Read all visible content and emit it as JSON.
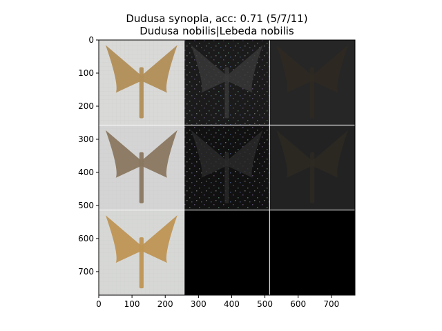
{
  "figure": {
    "title_line1": "Dudusa synopla, acc: 0.71 (5/7/11)",
    "title_line2": "Dudusa nobilis|Lebeda nobilis"
  },
  "axes": {
    "xlim": [
      0,
      771
    ],
    "ylim": [
      771,
      0
    ],
    "x_ticks": [
      0,
      100,
      200,
      300,
      400,
      500,
      600,
      700
    ],
    "y_ticks": [
      0,
      100,
      200,
      300,
      400,
      500,
      600,
      700
    ]
  },
  "grid_panels": [
    {
      "row": 0,
      "col": 0,
      "content": "moth-photo",
      "bg": "#d9d9d7",
      "wing": "#b28e57"
    },
    {
      "row": 0,
      "col": 1,
      "content": "saliency-noise",
      "bg": "#1b1b1b",
      "wing": "#3a3a3a"
    },
    {
      "row": 0,
      "col": 2,
      "content": "dark-moth",
      "bg": "#262626",
      "wing": "#2f2a22"
    },
    {
      "row": 1,
      "col": 0,
      "content": "moth-photo",
      "bg": "#d4d4d4",
      "wing": "#8a7760"
    },
    {
      "row": 1,
      "col": 1,
      "content": "saliency-noise",
      "bg": "#111111",
      "wing": "#2b2b2b"
    },
    {
      "row": 1,
      "col": 2,
      "content": "dark-moth",
      "bg": "#222222",
      "wing": "#2e2a23"
    },
    {
      "row": 2,
      "col": 0,
      "content": "moth-photo",
      "bg": "#d7d8d6",
      "wing": "#bf9554"
    },
    {
      "row": 2,
      "col": 1,
      "content": "black",
      "bg": "#000000",
      "wing": "#000000"
    },
    {
      "row": 2,
      "col": 2,
      "content": "black",
      "bg": "#000000",
      "wing": "#000000"
    }
  ],
  "colors": {
    "separator": "#ffffff",
    "axis": "#000000"
  }
}
